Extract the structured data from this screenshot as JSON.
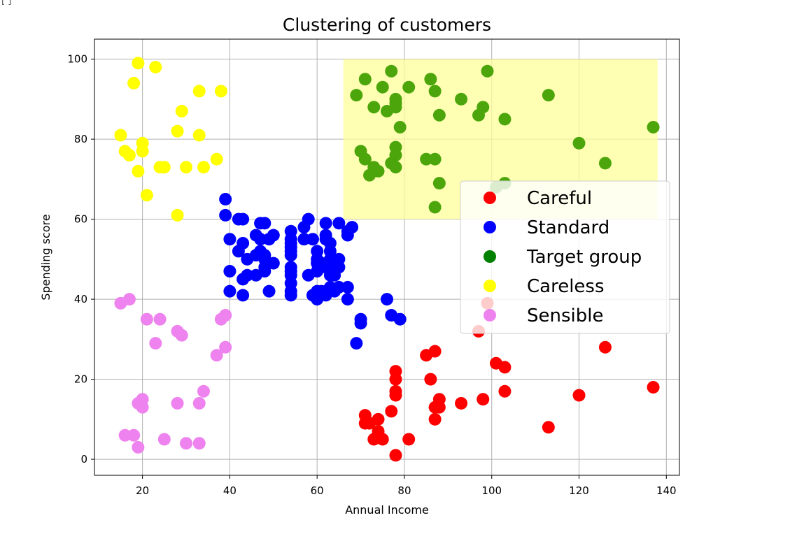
{
  "page": {
    "corner_mark": "[ ]"
  },
  "chart_data": {
    "type": "scatter",
    "title": "Clustering of customers",
    "xlabel": "Annual Income",
    "ylabel": "Spending score",
    "xlim": [
      9,
      143
    ],
    "ylim": [
      -4,
      105
    ],
    "xticks": [
      20,
      40,
      60,
      80,
      100,
      120,
      140
    ],
    "yticks": [
      0,
      20,
      40,
      60,
      80,
      100
    ],
    "grid": true,
    "legend": {
      "placement": "center-right",
      "colors": [
        "#ff0000",
        "#0000ff",
        "#008000",
        "#ffff00",
        "#ee82ee"
      ]
    },
    "highlight_region": {
      "x": [
        66,
        138
      ],
      "y": [
        60,
        100
      ],
      "color": "#ffff99",
      "opacity": 0.75
    },
    "series": [
      {
        "name": "Careful",
        "color": "#ff0000",
        "points": [
          [
            71,
            11
          ],
          [
            71,
            9
          ],
          [
            72,
            9
          ],
          [
            73,
            5
          ],
          [
            74,
            10
          ],
          [
            74,
            7
          ],
          [
            75,
            5
          ],
          [
            77,
            12
          ],
          [
            78,
            22
          ],
          [
            78,
            20
          ],
          [
            78,
            17
          ],
          [
            78,
            16
          ],
          [
            78,
            1
          ],
          [
            81,
            5
          ],
          [
            85,
            26
          ],
          [
            86,
            20
          ],
          [
            87,
            27
          ],
          [
            87,
            13
          ],
          [
            87,
            10
          ],
          [
            88,
            15
          ],
          [
            88,
            13
          ],
          [
            93,
            14
          ],
          [
            97,
            32
          ],
          [
            98,
            15
          ],
          [
            99,
            39
          ],
          [
            101,
            24
          ],
          [
            103,
            23
          ],
          [
            103,
            17
          ],
          [
            113,
            8
          ],
          [
            120,
            16
          ],
          [
            126,
            28
          ],
          [
            137,
            18
          ]
        ]
      },
      {
        "name": "Standard",
        "color": "#0000ff",
        "points": [
          [
            39,
            65
          ],
          [
            39,
            61
          ],
          [
            40,
            55
          ],
          [
            40,
            47
          ],
          [
            40,
            42
          ],
          [
            42,
            52
          ],
          [
            42,
            60
          ],
          [
            43,
            60
          ],
          [
            43,
            54
          ],
          [
            43,
            45
          ],
          [
            43,
            41
          ],
          [
            44,
            50
          ],
          [
            44,
            46
          ],
          [
            46,
            51
          ],
          [
            46,
            46
          ],
          [
            46,
            56
          ],
          [
            47,
            55
          ],
          [
            47,
            52
          ],
          [
            47,
            59
          ],
          [
            48,
            51
          ],
          [
            48,
            59
          ],
          [
            48,
            50
          ],
          [
            48,
            48
          ],
          [
            48,
            47
          ],
          [
            49,
            55
          ],
          [
            49,
            42
          ],
          [
            50,
            49
          ],
          [
            50,
            56
          ],
          [
            54,
            47
          ],
          [
            54,
            54
          ],
          [
            54,
            53
          ],
          [
            54,
            48
          ],
          [
            54,
            52
          ],
          [
            54,
            42
          ],
          [
            54,
            51
          ],
          [
            54,
            55
          ],
          [
            54,
            41
          ],
          [
            54,
            44
          ],
          [
            54,
            57
          ],
          [
            54,
            46
          ],
          [
            57,
            58
          ],
          [
            57,
            55
          ],
          [
            58,
            60
          ],
          [
            58,
            46
          ],
          [
            59,
            55
          ],
          [
            59,
            41
          ],
          [
            60,
            49
          ],
          [
            60,
            40
          ],
          [
            60,
            42
          ],
          [
            60,
            52
          ],
          [
            60,
            47
          ],
          [
            60,
            50
          ],
          [
            61,
            42
          ],
          [
            61,
            49
          ],
          [
            62,
            41
          ],
          [
            62,
            48
          ],
          [
            62,
            59
          ],
          [
            62,
            55
          ],
          [
            62,
            56
          ],
          [
            62,
            42
          ],
          [
            63,
            50
          ],
          [
            63,
            46
          ],
          [
            63,
            43
          ],
          [
            63,
            48
          ],
          [
            63,
            52
          ],
          [
            63,
            54
          ],
          [
            64,
            42
          ],
          [
            64,
            46
          ],
          [
            65,
            48
          ],
          [
            65,
            50
          ],
          [
            65,
            43
          ],
          [
            65,
            59
          ],
          [
            67,
            43
          ],
          [
            67,
            56
          ],
          [
            67,
            40
          ],
          [
            67,
            57
          ],
          [
            68,
            58
          ],
          [
            69,
            29
          ],
          [
            70,
            35
          ],
          [
            70,
            34
          ],
          [
            76,
            40
          ],
          [
            77,
            36
          ],
          [
            79,
            35
          ]
        ]
      },
      {
        "name": "Target group",
        "color": "#4ca60b",
        "points": [
          [
            69,
            91
          ],
          [
            70,
            77
          ],
          [
            71,
            95
          ],
          [
            71,
            75
          ],
          [
            72,
            71
          ],
          [
            73,
            88
          ],
          [
            73,
            73
          ],
          [
            74,
            72
          ],
          [
            75,
            93
          ],
          [
            76,
            87
          ],
          [
            77,
            97
          ],
          [
            77,
            74
          ],
          [
            78,
            90
          ],
          [
            78,
            88
          ],
          [
            78,
            76
          ],
          [
            78,
            89
          ],
          [
            78,
            78
          ],
          [
            78,
            73
          ],
          [
            79,
            83
          ],
          [
            81,
            93
          ],
          [
            85,
            75
          ],
          [
            86,
            95
          ],
          [
            87,
            63
          ],
          [
            87,
            75
          ],
          [
            87,
            92
          ],
          [
            88,
            86
          ],
          [
            88,
            69
          ],
          [
            93,
            90
          ],
          [
            97,
            86
          ],
          [
            98,
            88
          ],
          [
            99,
            97
          ],
          [
            101,
            68
          ],
          [
            103,
            85
          ],
          [
            103,
            69
          ],
          [
            113,
            91
          ],
          [
            120,
            79
          ],
          [
            126,
            74
          ],
          [
            137,
            83
          ]
        ]
      },
      {
        "name": "Careless",
        "color": "#ffff00",
        "points": [
          [
            15,
            81
          ],
          [
            16,
            77
          ],
          [
            17,
            76
          ],
          [
            18,
            94
          ],
          [
            19,
            72
          ],
          [
            19,
            99
          ],
          [
            20,
            77
          ],
          [
            20,
            79
          ],
          [
            21,
            66
          ],
          [
            23,
            98
          ],
          [
            24,
            73
          ],
          [
            25,
            73
          ],
          [
            28,
            82
          ],
          [
            28,
            61
          ],
          [
            29,
            87
          ],
          [
            30,
            73
          ],
          [
            33,
            92
          ],
          [
            33,
            81
          ],
          [
            34,
            73
          ],
          [
            37,
            75
          ],
          [
            38,
            92
          ]
        ]
      },
      {
        "name": "Sensible",
        "color": "#ee82ee",
        "points": [
          [
            15,
            39
          ],
          [
            16,
            6
          ],
          [
            17,
            40
          ],
          [
            18,
            6
          ],
          [
            19,
            3
          ],
          [
            19,
            14
          ],
          [
            20,
            15
          ],
          [
            20,
            13
          ],
          [
            21,
            35
          ],
          [
            23,
            29
          ],
          [
            24,
            35
          ],
          [
            25,
            5
          ],
          [
            28,
            14
          ],
          [
            28,
            32
          ],
          [
            29,
            31
          ],
          [
            30,
            4
          ],
          [
            33,
            4
          ],
          [
            33,
            14
          ],
          [
            34,
            17
          ],
          [
            37,
            26
          ],
          [
            38,
            35
          ],
          [
            39,
            36
          ],
          [
            39,
            28
          ]
        ]
      }
    ]
  }
}
